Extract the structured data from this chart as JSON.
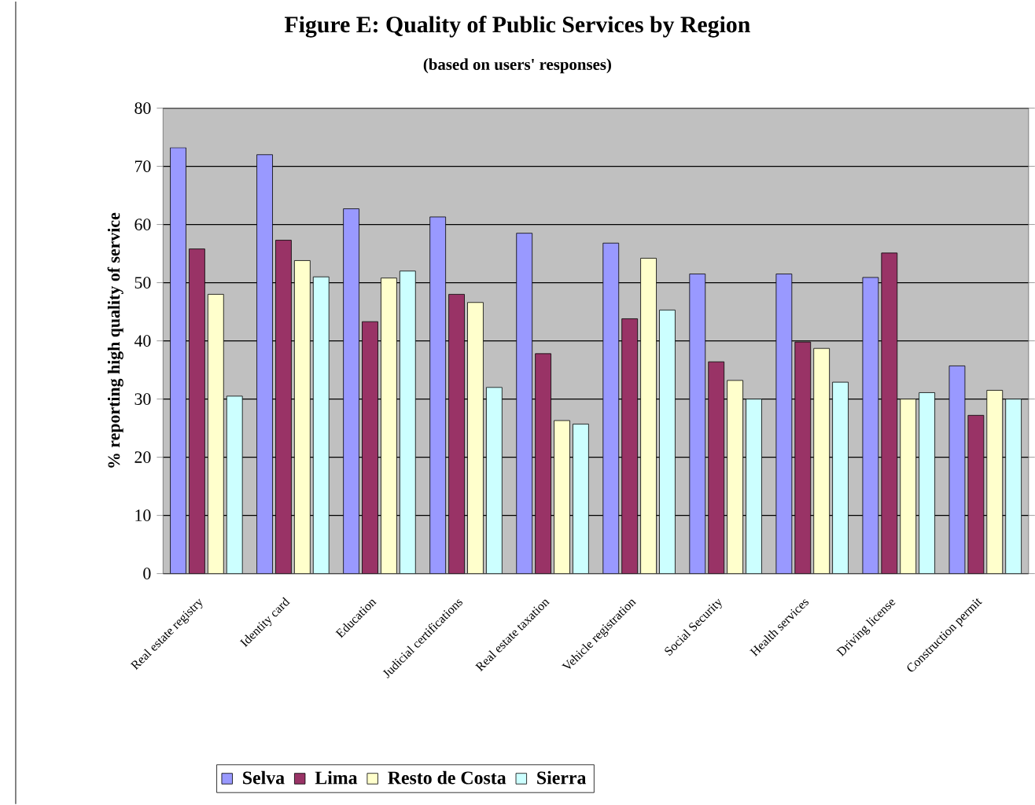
{
  "chart_data": {
    "type": "bar",
    "title": "Figure E: Quality of Public Services by Region",
    "subtitle": "(based on users' responses)",
    "ylabel": "% reporting high quality of service",
    "categories": [
      "Real estate registry",
      "Identity card",
      "Education",
      "Judicial certifications",
      "Real estate taxation",
      "Vehicle registration",
      "Social Security",
      "Health services",
      "Driving license",
      "Construction permit"
    ],
    "series": [
      {
        "name": "Selva",
        "color": "#9999ff",
        "values": [
          73.2,
          72,
          62.7,
          61.3,
          58.5,
          56.8,
          51.5,
          51.5,
          50.9,
          35.7
        ]
      },
      {
        "name": "Lima",
        "color": "#993366",
        "values": [
          55.8,
          57.3,
          43.3,
          48,
          37.8,
          43.8,
          36.4,
          39.8,
          55.1,
          27.2
        ]
      },
      {
        "name": "Resto de Costa",
        "color": "#ffffcc",
        "values": [
          48,
          53.8,
          50.8,
          46.6,
          26.3,
          54.2,
          33.2,
          38.7,
          30,
          31.5
        ]
      },
      {
        "name": "Sierra",
        "color": "#ccffff",
        "values": [
          30.5,
          51,
          52,
          32,
          25.7,
          45.3,
          30,
          32.9,
          31.1,
          30
        ]
      }
    ],
    "ylim": [
      0,
      80
    ],
    "yticks": [
      0,
      10,
      20,
      30,
      40,
      50,
      60,
      70,
      80
    ],
    "grid": "y",
    "legend": "bottom"
  }
}
